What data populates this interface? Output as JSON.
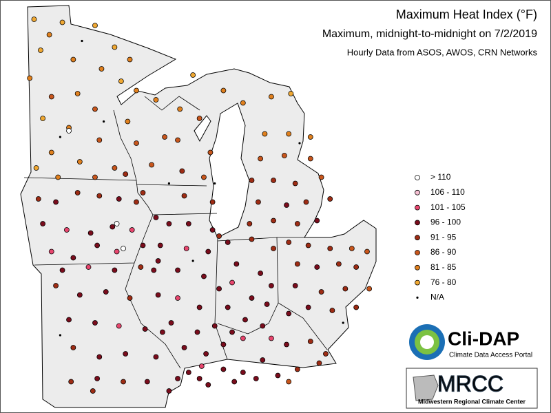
{
  "title": "Maximum Heat Index (°F)",
  "subtitle": "Maximum, midnight-to-midnight on 7/2/2019",
  "source": "Hourly Data from ASOS, AWOS, CRN Networks",
  "legend": [
    {
      "label": "> 110",
      "color": "#ffffff"
    },
    {
      "label": "106 - 110",
      "color": "#f6bfd2"
    },
    {
      "label": "101 - 105",
      "color": "#e8466e"
    },
    {
      "label": "96 - 100",
      "color": "#7a0c1c"
    },
    {
      "label": "91 - 95",
      "color": "#9e2c14"
    },
    {
      "label": "86 - 90",
      "color": "#c8561c"
    },
    {
      "label": "81 - 85",
      "color": "#e0801e"
    },
    {
      "label": "76 - 80",
      "color": "#f0a832"
    },
    {
      "label": "N/A",
      "color": "#000000"
    }
  ],
  "logos": {
    "clidap": "Cli-DAP",
    "clidap_sub": "Climate Data Access Portal",
    "mrcc": "MRCC",
    "mrcc_sub": "Midwestern Regional Climate Center"
  },
  "stations": [
    [
      -96.2,
      48.8,
      7
    ],
    [
      -95.5,
      48.3,
      6
    ],
    [
      -94.9,
      48.7,
      7
    ],
    [
      -93.4,
      48.6,
      7
    ],
    [
      -92.5,
      47.9,
      7
    ],
    [
      -91.8,
      47.5,
      6
    ],
    [
      -94.4,
      47.5,
      6
    ],
    [
      -95.9,
      47.8,
      7
    ],
    [
      -93.1,
      47.2,
      6
    ],
    [
      -92.2,
      46.8,
      7
    ],
    [
      -96.4,
      46.9,
      6
    ],
    [
      -95.4,
      46.3,
      5
    ],
    [
      -94.2,
      46.4,
      6
    ],
    [
      -93.4,
      45.9,
      5
    ],
    [
      -95.8,
      45.6,
      7
    ],
    [
      -94.6,
      45.3,
      6
    ],
    [
      -93.2,
      44.9,
      5
    ],
    [
      -92.5,
      44.0,
      5
    ],
    [
      -94.1,
      44.2,
      6
    ],
    [
      -95.4,
      44.5,
      6
    ],
    [
      -96.1,
      44.0,
      7
    ],
    [
      -95.1,
      43.7,
      6
    ],
    [
      -93.4,
      43.7,
      5
    ],
    [
      -92.0,
      43.8,
      4
    ],
    [
      -94.6,
      45.2,
      0
    ],
    [
      -94.0,
      48.1,
      8
    ],
    [
      -95.0,
      45.0,
      8
    ],
    [
      -93.0,
      45.5,
      8
    ],
    [
      -91.5,
      46.5,
      6
    ],
    [
      -90.6,
      46.2,
      6
    ],
    [
      -89.5,
      45.9,
      6
    ],
    [
      -88.6,
      45.6,
      5
    ],
    [
      -91.9,
      45.5,
      6
    ],
    [
      -90.2,
      45.0,
      5
    ],
    [
      -89.6,
      44.9,
      5
    ],
    [
      -88.1,
      44.5,
      5
    ],
    [
      -91.5,
      44.8,
      5
    ],
    [
      -90.8,
      44.1,
      5
    ],
    [
      -89.4,
      43.9,
      4
    ],
    [
      -88.4,
      43.7,
      5
    ],
    [
      -91.2,
      43.2,
      4
    ],
    [
      -89.3,
      43.1,
      4
    ],
    [
      -88.0,
      42.9,
      4
    ],
    [
      -87.9,
      43.5,
      8
    ],
    [
      -90.0,
      43.5,
      8
    ],
    [
      -88.9,
      47.0,
      7
    ],
    [
      -87.5,
      46.5,
      6
    ],
    [
      -86.6,
      46.1,
      6
    ],
    [
      -85.3,
      46.3,
      6
    ],
    [
      -84.4,
      46.4,
      7
    ],
    [
      -96.0,
      43.0,
      4
    ],
    [
      -95.2,
      42.9,
      3
    ],
    [
      -94.2,
      43.2,
      4
    ],
    [
      -93.2,
      43.1,
      4
    ],
    [
      -92.3,
      43.0,
      3
    ],
    [
      -91.5,
      42.9,
      4
    ],
    [
      -95.8,
      42.2,
      3
    ],
    [
      -94.7,
      42.0,
      2
    ],
    [
      -93.6,
      41.9,
      3
    ],
    [
      -92.6,
      42.1,
      3
    ],
    [
      -91.7,
      42.0,
      2
    ],
    [
      -90.6,
      42.4,
      3
    ],
    [
      -95.4,
      41.3,
      2
    ],
    [
      -94.4,
      41.1,
      3
    ],
    [
      -93.3,
      41.5,
      3
    ],
    [
      -92.4,
      41.3,
      2
    ],
    [
      -91.2,
      41.5,
      3
    ],
    [
      -90.5,
      41.0,
      3
    ],
    [
      -94.9,
      40.7,
      3
    ],
    [
      -93.7,
      40.8,
      2
    ],
    [
      -92.5,
      40.7,
      3
    ],
    [
      -91.3,
      40.8,
      4
    ],
    [
      -92.4,
      42.2,
      0
    ],
    [
      -92.1,
      41.4,
      0
    ],
    [
      -95.2,
      40.2,
      4
    ],
    [
      -94.1,
      39.9,
      3
    ],
    [
      -92.9,
      40.0,
      3
    ],
    [
      -91.8,
      39.8,
      4
    ],
    [
      -94.6,
      39.1,
      3
    ],
    [
      -93.4,
      39.0,
      3
    ],
    [
      -92.3,
      38.9,
      2
    ],
    [
      -91.1,
      38.8,
      3
    ],
    [
      -90.3,
      38.7,
      3
    ],
    [
      -94.4,
      38.2,
      4
    ],
    [
      -93.2,
      37.9,
      3
    ],
    [
      -92.0,
      38.0,
      3
    ],
    [
      -90.6,
      37.9,
      3
    ],
    [
      -94.5,
      37.1,
      4
    ],
    [
      -93.3,
      37.2,
      3
    ],
    [
      -92.1,
      37.1,
      4
    ],
    [
      -91.0,
      37.1,
      3
    ],
    [
      -89.6,
      37.2,
      3
    ],
    [
      -90.0,
      36.8,
      3
    ],
    [
      -93.5,
      36.8,
      4
    ],
    [
      -95.0,
      38.6,
      8
    ],
    [
      -90.0,
      42.2,
      3
    ],
    [
      -89.1,
      42.2,
      3
    ],
    [
      -88.0,
      42.0,
      3
    ],
    [
      -87.7,
      41.8,
      4
    ],
    [
      -90.4,
      41.5,
      3
    ],
    [
      -89.2,
      41.4,
      2
    ],
    [
      -88.2,
      41.3,
      3
    ],
    [
      -90.7,
      40.7,
      3
    ],
    [
      -89.6,
      40.7,
      3
    ],
    [
      -88.4,
      40.5,
      3
    ],
    [
      -87.7,
      40.1,
      3
    ],
    [
      -90.5,
      39.9,
      3
    ],
    [
      -89.6,
      39.8,
      2
    ],
    [
      -88.6,
      39.5,
      3
    ],
    [
      -89.9,
      39.0,
      3
    ],
    [
      -88.7,
      38.7,
      3
    ],
    [
      -87.9,
      38.9,
      3
    ],
    [
      -89.3,
      38.2,
      3
    ],
    [
      -88.3,
      38.0,
      3
    ],
    [
      -89.1,
      37.4,
      3
    ],
    [
      -88.5,
      37.6,
      2
    ],
    [
      -88.9,
      41.0,
      8
    ],
    [
      -87.3,
      41.6,
      3
    ],
    [
      -86.2,
      41.7,
      4
    ],
    [
      -85.2,
      41.4,
      4
    ],
    [
      -86.9,
      40.9,
      3
    ],
    [
      -85.8,
      40.6,
      3
    ],
    [
      -85.3,
      40.2,
      3
    ],
    [
      -87.1,
      40.3,
      2
    ],
    [
      -86.2,
      39.8,
      3
    ],
    [
      -85.5,
      39.6,
      3
    ],
    [
      -87.3,
      39.5,
      3
    ],
    [
      -86.5,
      39.1,
      3
    ],
    [
      -85.7,
      38.9,
      3
    ],
    [
      -87.5,
      38.3,
      3
    ],
    [
      -86.6,
      38.5,
      2
    ],
    [
      -87.1,
      38.7,
      3
    ],
    [
      -84.5,
      41.6,
      4
    ],
    [
      -83.6,
      41.5,
      4
    ],
    [
      -82.6,
      41.4,
      4
    ],
    [
      -81.6,
      41.4,
      5
    ],
    [
      -80.9,
      41.3,
      5
    ],
    [
      -84.1,
      40.9,
      4
    ],
    [
      -83.2,
      40.8,
      3
    ],
    [
      -82.2,
      40.9,
      4
    ],
    [
      -81.4,
      40.8,
      4
    ],
    [
      -84.2,
      40.2,
      3
    ],
    [
      -83.0,
      40.0,
      4
    ],
    [
      -81.9,
      40.1,
      4
    ],
    [
      -80.8,
      40.1,
      5
    ],
    [
      -84.5,
      39.3,
      3
    ],
    [
      -83.6,
      39.5,
      3
    ],
    [
      -82.5,
      39.4,
      4
    ],
    [
      -81.4,
      39.5,
      4
    ],
    [
      -82.0,
      39.0,
      8
    ],
    [
      -85.6,
      45.1,
      6
    ],
    [
      -84.5,
      45.1,
      6
    ],
    [
      -83.5,
      45.0,
      6
    ],
    [
      -85.8,
      44.3,
      5
    ],
    [
      -84.7,
      44.4,
      5
    ],
    [
      -83.5,
      44.3,
      5
    ],
    [
      -86.2,
      43.6,
      4
    ],
    [
      -85.2,
      43.6,
      4
    ],
    [
      -84.2,
      43.5,
      4
    ],
    [
      -83.0,
      43.7,
      5
    ],
    [
      -85.9,
      42.9,
      4
    ],
    [
      -84.6,
      42.8,
      3
    ],
    [
      -83.7,
      42.9,
      4
    ],
    [
      -82.6,
      43.0,
      4
    ],
    [
      -86.3,
      42.2,
      4
    ],
    [
      -85.2,
      42.3,
      4
    ],
    [
      -84.1,
      42.2,
      4
    ],
    [
      -83.2,
      42.3,
      3
    ],
    [
      -84.0,
      44.8,
      8
    ],
    [
      -88.6,
      37.2,
      3
    ],
    [
      -87.5,
      37.5,
      3
    ],
    [
      -86.6,
      37.4,
      3
    ],
    [
      -85.7,
      37.8,
      3
    ],
    [
      -84.6,
      38.3,
      3
    ],
    [
      -83.5,
      38.4,
      4
    ],
    [
      -88.2,
      37.0,
      3
    ],
    [
      -87.0,
      37.1,
      3
    ],
    [
      -86.0,
      37.2,
      3
    ],
    [
      -85.0,
      37.3,
      3
    ],
    [
      -84.1,
      37.5,
      4
    ],
    [
      -83.1,
      37.7,
      4
    ],
    [
      -84.5,
      37.1,
      5
    ],
    [
      -82.8,
      38.0,
      4
    ],
    [
      -85.3,
      38.5,
      2
    ]
  ]
}
